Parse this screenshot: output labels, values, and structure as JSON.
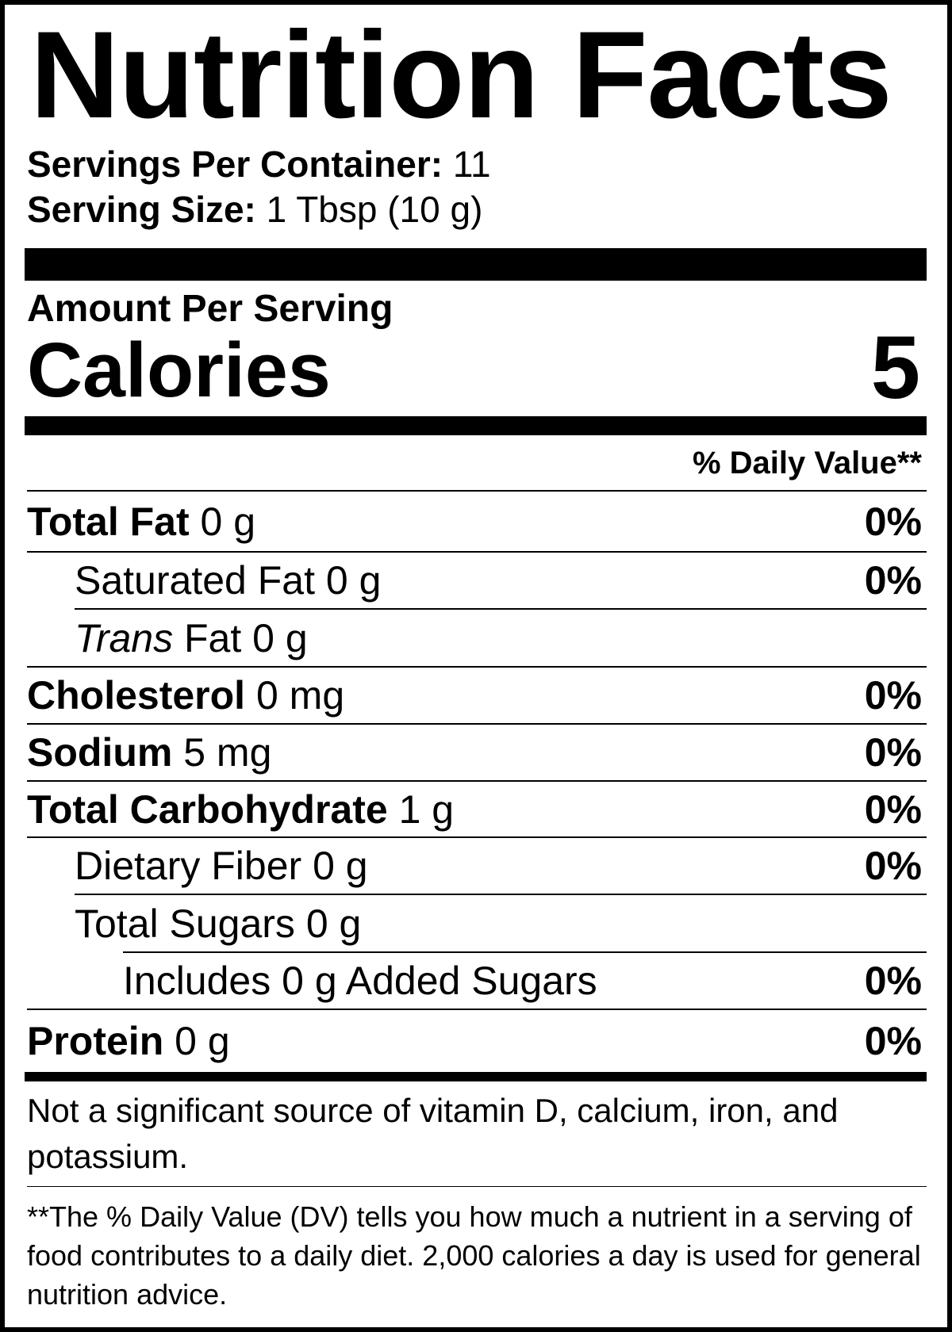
{
  "title": "Nutrition Facts",
  "servings": {
    "label": "Servings Per Container:",
    "value": "11"
  },
  "serving_size": {
    "label": "Serving Size:",
    "value": "1 Tbsp (10 g)"
  },
  "amount_per_serving": "Amount Per Serving",
  "calories": {
    "label": "Calories",
    "value": "5"
  },
  "daily_value_header": "% Daily Value**",
  "nutrients": [
    {
      "name": "Total Fat",
      "amount": "0 g",
      "dv": "0%"
    },
    {
      "name": "Saturated Fat",
      "amount": "0 g",
      "dv": "0%"
    },
    {
      "name_italic": "Trans",
      "name": "Fat",
      "amount": "0 g",
      "dv": ""
    },
    {
      "name": "Cholesterol",
      "amount": "0 mg",
      "dv": "0%"
    },
    {
      "name": "Sodium",
      "amount": "5 mg",
      "dv": "0%"
    },
    {
      "name": "Total Carbohydrate",
      "amount": "1 g",
      "dv": "0%"
    },
    {
      "name": "Dietary Fiber",
      "amount": "0 g",
      "dv": "0%"
    },
    {
      "name": "Total Sugars",
      "amount": "0 g",
      "dv": ""
    },
    {
      "name": "Includes 0 g Added Sugars",
      "amount": "",
      "dv": "0%"
    },
    {
      "name": "Protein",
      "amount": "0 g",
      "dv": "0%"
    }
  ],
  "not_significant": "Not a significant source of vitamin D, calcium, iron, and potassium.",
  "footnote": "**The % Daily Value (DV) tells you how much a nutrient in a serving of food contributes to a daily diet. 2,000 calories a day is used for general nutrition advice."
}
